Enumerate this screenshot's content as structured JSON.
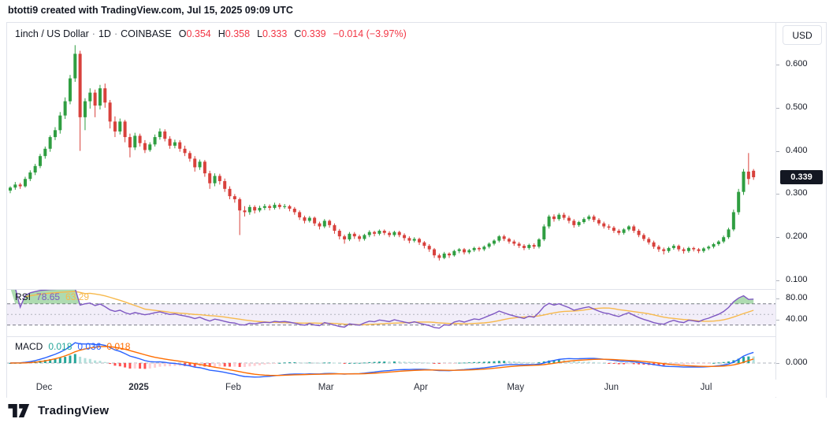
{
  "header": {
    "attribution": "btotti9 created with TradingView.com, Jul 15, 2025 09:09 UTC"
  },
  "legend": {
    "symbol": "1inch / US Dollar",
    "sep": "·",
    "interval": "1D",
    "exchange": "COINBASE",
    "ohlc": {
      "o_label": "O",
      "o_value": "0.354",
      "h_label": "H",
      "h_value": "0.358",
      "l_label": "L",
      "l_value": "0.333",
      "c_label": "C",
      "c_value": "0.339"
    },
    "change": "−0.014 (−3.97%)"
  },
  "price_axis": {
    "currency_button": "USD",
    "tick_values": [
      0.6,
      0.5,
      0.4,
      0.3,
      0.2,
      0.1
    ],
    "last_price": "0.339"
  },
  "rsi": {
    "label": "RSI",
    "value": "78.65",
    "ma_value": "63.29",
    "length": 14,
    "ma_length": 14,
    "levels": {
      "upper": 70,
      "middle": 50,
      "lower": 30
    },
    "tick_values": [
      80,
      40
    ]
  },
  "macd": {
    "label": "MACD",
    "hist_value": "0.018",
    "macd_value": "0.036",
    "signal_value": "0.018",
    "fast": 12,
    "slow": 26,
    "signal": 9,
    "tick_values": [
      0
    ]
  },
  "time_axis": {
    "labels": [
      {
        "text": "Dec",
        "index": 6.8,
        "year": false
      },
      {
        "text": "2025",
        "index": 25.75,
        "year": true
      },
      {
        "text": "Feb",
        "index": 44.7,
        "year": false
      },
      {
        "text": "Mar",
        "index": 63.3,
        "year": false
      },
      {
        "text": "Apr",
        "index": 82.3,
        "year": false
      },
      {
        "text": "May",
        "index": 101.3,
        "year": false
      },
      {
        "text": "Jun",
        "index": 120.5,
        "year": false
      },
      {
        "text": "Jul",
        "index": 139.5,
        "year": false
      }
    ]
  },
  "footer": {
    "brand": "TradingView"
  },
  "colors": {
    "up": "#2f9e41",
    "down": "#d8413c",
    "legend_red": "#f23645",
    "rsi_line": "#7e57c2",
    "rsi_ma": "#f7b94c",
    "rsi_band": "rgba(126,87,194,0.10)",
    "rsi_over_fill": "rgba(76,175,80,0.45)",
    "level_line": "#787b86",
    "mid_line": "#b2b5be",
    "macd_line": "#2962ff",
    "signal_line": "#ff6d00",
    "hist_up_grow": "#26a69a",
    "hist_up_fall": "#b2dfdb",
    "hist_down_grow": "#ffcdd2",
    "hist_down_fall": "#ff5252",
    "border": "#e0e3eb",
    "axis_text": "#131722",
    "badge_bg": "#131722",
    "badge_text": "#ffffff"
  },
  "chart_data": {
    "type": "candlestick",
    "title": "1inch / US Dollar · 1D · COINBASE",
    "symbol": "1INCH/USD",
    "timeframe": "1D",
    "ylim": [
      0.08,
      0.7
    ],
    "price_ticks": [
      0.6,
      0.5,
      0.4,
      0.3,
      0.2,
      0.1
    ],
    "last": {
      "open": 0.354,
      "high": 0.358,
      "low": 0.333,
      "close": 0.339,
      "change": -0.014,
      "change_pct": -3.97
    },
    "indicators": [
      {
        "name": "RSI",
        "length": 14,
        "last": 78.65,
        "ma_last": 63.29
      },
      {
        "name": "MACD",
        "fast": 12,
        "slow": 26,
        "signal": 9,
        "hist_last": 0.018,
        "macd_last": 0.036,
        "signal_last": 0.018
      }
    ],
    "candles": [
      [
        0.308,
        0.318,
        0.302,
        0.315
      ],
      [
        0.315,
        0.328,
        0.31,
        0.322
      ],
      [
        0.322,
        0.326,
        0.312,
        0.318
      ],
      [
        0.318,
        0.34,
        0.315,
        0.335
      ],
      [
        0.335,
        0.355,
        0.33,
        0.35
      ],
      [
        0.35,
        0.37,
        0.344,
        0.365
      ],
      [
        0.365,
        0.393,
        0.36,
        0.388
      ],
      [
        0.388,
        0.41,
        0.382,
        0.405
      ],
      [
        0.405,
        0.436,
        0.398,
        0.432
      ],
      [
        0.432,
        0.455,
        0.425,
        0.448
      ],
      [
        0.448,
        0.49,
        0.44,
        0.482
      ],
      [
        0.482,
        0.524,
        0.474,
        0.515
      ],
      [
        0.515,
        0.576,
        0.508,
        0.568
      ],
      [
        0.568,
        0.645,
        0.56,
        0.625
      ],
      [
        0.625,
        0.632,
        0.4,
        0.478
      ],
      [
        0.478,
        0.522,
        0.448,
        0.515
      ],
      [
        0.515,
        0.545,
        0.498,
        0.535
      ],
      [
        0.535,
        0.542,
        0.478,
        0.505
      ],
      [
        0.505,
        0.553,
        0.496,
        0.545
      ],
      [
        0.545,
        0.556,
        0.5,
        0.512
      ],
      [
        0.512,
        0.518,
        0.452,
        0.468
      ],
      [
        0.468,
        0.48,
        0.432,
        0.445
      ],
      [
        0.445,
        0.475,
        0.438,
        0.468
      ],
      [
        0.468,
        0.472,
        0.42,
        0.432
      ],
      [
        0.432,
        0.44,
        0.385,
        0.408
      ],
      [
        0.408,
        0.442,
        0.402,
        0.435
      ],
      [
        0.435,
        0.44,
        0.41,
        0.418
      ],
      [
        0.418,
        0.425,
        0.395,
        0.402
      ],
      [
        0.402,
        0.42,
        0.398,
        0.415
      ],
      [
        0.415,
        0.438,
        0.41,
        0.432
      ],
      [
        0.432,
        0.452,
        0.426,
        0.445
      ],
      [
        0.445,
        0.45,
        0.422,
        0.428
      ],
      [
        0.428,
        0.434,
        0.405,
        0.412
      ],
      [
        0.412,
        0.426,
        0.406,
        0.42
      ],
      [
        0.42,
        0.425,
        0.398,
        0.405
      ],
      [
        0.405,
        0.412,
        0.388,
        0.395
      ],
      [
        0.395,
        0.4,
        0.375,
        0.382
      ],
      [
        0.382,
        0.388,
        0.352,
        0.362
      ],
      [
        0.362,
        0.38,
        0.356,
        0.375
      ],
      [
        0.375,
        0.379,
        0.34,
        0.348
      ],
      [
        0.348,
        0.354,
        0.312,
        0.325
      ],
      [
        0.325,
        0.348,
        0.318,
        0.342
      ],
      [
        0.342,
        0.347,
        0.322,
        0.33
      ],
      [
        0.33,
        0.336,
        0.305,
        0.312
      ],
      [
        0.312,
        0.318,
        0.288,
        0.295
      ],
      [
        0.295,
        0.3,
        0.28,
        0.288
      ],
      [
        0.288,
        0.292,
        0.205,
        0.262
      ],
      [
        0.262,
        0.272,
        0.248,
        0.258
      ],
      [
        0.258,
        0.275,
        0.252,
        0.27
      ],
      [
        0.27,
        0.274,
        0.255,
        0.262
      ],
      [
        0.262,
        0.273,
        0.258,
        0.268
      ],
      [
        0.268,
        0.277,
        0.263,
        0.272
      ],
      [
        0.272,
        0.276,
        0.262,
        0.268
      ],
      [
        0.268,
        0.28,
        0.264,
        0.275
      ],
      [
        0.275,
        0.279,
        0.265,
        0.27
      ],
      [
        0.27,
        0.277,
        0.266,
        0.272
      ],
      [
        0.272,
        0.275,
        0.26,
        0.266
      ],
      [
        0.266,
        0.27,
        0.252,
        0.258
      ],
      [
        0.258,
        0.262,
        0.24,
        0.246
      ],
      [
        0.246,
        0.25,
        0.232,
        0.238
      ],
      [
        0.238,
        0.249,
        0.234,
        0.245
      ],
      [
        0.245,
        0.248,
        0.226,
        0.232
      ],
      [
        0.232,
        0.236,
        0.218,
        0.225
      ],
      [
        0.225,
        0.242,
        0.221,
        0.238
      ],
      [
        0.238,
        0.241,
        0.222,
        0.228
      ],
      [
        0.228,
        0.232,
        0.208,
        0.215
      ],
      [
        0.215,
        0.219,
        0.195,
        0.202
      ],
      [
        0.202,
        0.206,
        0.185,
        0.195
      ],
      [
        0.195,
        0.212,
        0.191,
        0.208
      ],
      [
        0.208,
        0.212,
        0.196,
        0.202
      ],
      [
        0.202,
        0.206,
        0.19,
        0.196
      ],
      [
        0.196,
        0.208,
        0.192,
        0.205
      ],
      [
        0.205,
        0.216,
        0.2,
        0.212
      ],
      [
        0.212,
        0.215,
        0.202,
        0.208
      ],
      [
        0.208,
        0.218,
        0.204,
        0.215
      ],
      [
        0.215,
        0.218,
        0.205,
        0.21
      ],
      [
        0.21,
        0.214,
        0.2,
        0.205
      ],
      [
        0.205,
        0.215,
        0.201,
        0.212
      ],
      [
        0.212,
        0.215,
        0.2,
        0.205
      ],
      [
        0.205,
        0.209,
        0.192,
        0.198
      ],
      [
        0.198,
        0.202,
        0.186,
        0.192
      ],
      [
        0.192,
        0.2,
        0.188,
        0.196
      ],
      [
        0.196,
        0.199,
        0.182,
        0.188
      ],
      [
        0.188,
        0.191,
        0.174,
        0.18
      ],
      [
        0.18,
        0.184,
        0.166,
        0.172
      ],
      [
        0.172,
        0.175,
        0.152,
        0.158
      ],
      [
        0.158,
        0.162,
        0.146,
        0.152
      ],
      [
        0.152,
        0.166,
        0.149,
        0.162
      ],
      [
        0.162,
        0.165,
        0.152,
        0.158
      ],
      [
        0.158,
        0.171,
        0.155,
        0.168
      ],
      [
        0.168,
        0.175,
        0.163,
        0.172
      ],
      [
        0.172,
        0.175,
        0.16,
        0.165
      ],
      [
        0.165,
        0.173,
        0.161,
        0.17
      ],
      [
        0.17,
        0.178,
        0.166,
        0.175
      ],
      [
        0.175,
        0.178,
        0.167,
        0.172
      ],
      [
        0.172,
        0.181,
        0.168,
        0.178
      ],
      [
        0.178,
        0.188,
        0.174,
        0.185
      ],
      [
        0.185,
        0.195,
        0.181,
        0.192
      ],
      [
        0.192,
        0.205,
        0.188,
        0.202
      ],
      [
        0.202,
        0.206,
        0.191,
        0.196
      ],
      [
        0.196,
        0.199,
        0.185,
        0.19
      ],
      [
        0.19,
        0.194,
        0.18,
        0.185
      ],
      [
        0.185,
        0.189,
        0.175,
        0.18
      ],
      [
        0.18,
        0.184,
        0.17,
        0.175
      ],
      [
        0.175,
        0.185,
        0.171,
        0.182
      ],
      [
        0.182,
        0.186,
        0.173,
        0.178
      ],
      [
        0.178,
        0.198,
        0.174,
        0.195
      ],
      [
        0.195,
        0.23,
        0.191,
        0.225
      ],
      [
        0.225,
        0.252,
        0.22,
        0.248
      ],
      [
        0.248,
        0.253,
        0.236,
        0.242
      ],
      [
        0.242,
        0.256,
        0.238,
        0.252
      ],
      [
        0.252,
        0.257,
        0.24,
        0.245
      ],
      [
        0.245,
        0.25,
        0.232,
        0.238
      ],
      [
        0.238,
        0.242,
        0.222,
        0.228
      ],
      [
        0.228,
        0.238,
        0.224,
        0.235
      ],
      [
        0.235,
        0.246,
        0.231,
        0.242
      ],
      [
        0.242,
        0.252,
        0.238,
        0.248
      ],
      [
        0.248,
        0.252,
        0.235,
        0.24
      ],
      [
        0.24,
        0.244,
        0.227,
        0.232
      ],
      [
        0.232,
        0.236,
        0.22,
        0.225
      ],
      [
        0.225,
        0.23,
        0.217,
        0.222
      ],
      [
        0.222,
        0.226,
        0.21,
        0.215
      ],
      [
        0.215,
        0.219,
        0.205,
        0.21
      ],
      [
        0.21,
        0.221,
        0.206,
        0.218
      ],
      [
        0.218,
        0.228,
        0.214,
        0.225
      ],
      [
        0.225,
        0.229,
        0.21,
        0.215
      ],
      [
        0.215,
        0.219,
        0.2,
        0.205
      ],
      [
        0.205,
        0.209,
        0.191,
        0.196
      ],
      [
        0.196,
        0.2,
        0.183,
        0.188
      ],
      [
        0.188,
        0.192,
        0.173,
        0.178
      ],
      [
        0.178,
        0.182,
        0.166,
        0.172
      ],
      [
        0.172,
        0.176,
        0.16,
        0.168
      ],
      [
        0.168,
        0.178,
        0.164,
        0.175
      ],
      [
        0.175,
        0.184,
        0.171,
        0.18
      ],
      [
        0.18,
        0.183,
        0.167,
        0.172
      ],
      [
        0.172,
        0.176,
        0.162,
        0.168
      ],
      [
        0.168,
        0.178,
        0.164,
        0.175
      ],
      [
        0.175,
        0.178,
        0.167,
        0.172
      ],
      [
        0.172,
        0.175,
        0.163,
        0.168
      ],
      [
        0.168,
        0.177,
        0.164,
        0.174
      ],
      [
        0.174,
        0.181,
        0.17,
        0.178
      ],
      [
        0.178,
        0.187,
        0.174,
        0.184
      ],
      [
        0.184,
        0.193,
        0.18,
        0.19
      ],
      [
        0.19,
        0.204,
        0.186,
        0.2
      ],
      [
        0.2,
        0.222,
        0.196,
        0.218
      ],
      [
        0.218,
        0.264,
        0.214,
        0.258
      ],
      [
        0.258,
        0.312,
        0.252,
        0.305
      ],
      [
        0.305,
        0.358,
        0.298,
        0.352
      ],
      [
        0.352,
        0.395,
        0.322,
        0.335
      ],
      [
        0.354,
        0.358,
        0.333,
        0.339
      ]
    ]
  }
}
